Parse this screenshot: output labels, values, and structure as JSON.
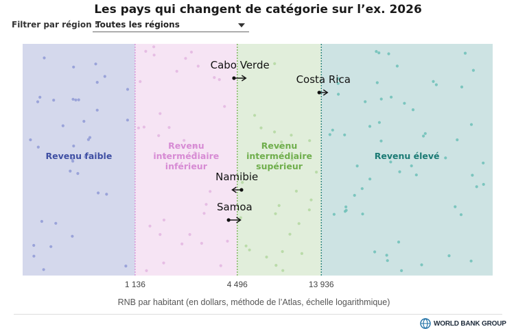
{
  "header": {
    "title": "Les pays qui changent de catégorie sur l’ex. 2026",
    "filter_label": "Filtrer par région :",
    "region_selected": "Toutes les régions"
  },
  "chart_data": {
    "type": "scatter",
    "title": "Les pays qui changent de catégorie sur l’ex. 2026",
    "xlabel": "RNB par habitant (en dollars, méthode de l’Atlas, échelle logarithmique)",
    "ylabel": "",
    "x_scale": "log",
    "xlim": [
      250,
      140000
    ],
    "grid": false,
    "thresholds": [
      1136,
      4496,
      13936
    ],
    "threshold_labels": [
      "1 136",
      "4 496",
      "13 936"
    ],
    "bands": [
      {
        "name": "Revenu faible",
        "label_lines": [
          "Revenu faible"
        ],
        "color": "#d4d8ec",
        "text_color": "#3f4fa3",
        "dot_color": "#8f9ad6"
      },
      {
        "name": "Revenu intermédiaire inférieur",
        "label_lines": [
          "Revenu",
          "intermédiaire",
          "inférieur"
        ],
        "color": "#f6e4f4",
        "text_color": "#d78bd4",
        "dot_color": "#e3b6e0"
      },
      {
        "name": "Revenu intermédiaire supérieur",
        "label_lines": [
          "Revenu",
          "intermédiaire",
          "supérieur"
        ],
        "color": "#e1eedb",
        "text_color": "#6fae4c",
        "dot_color": "#b3d7a0"
      },
      {
        "name": "Revenu élevé",
        "label_lines": [
          "Revenu élevé"
        ],
        "color": "#cde3e3",
        "text_color": "#1a7a74",
        "dot_color": "#6cbfb7"
      }
    ],
    "movers": [
      {
        "country": "Cabo Verde",
        "from": 4300,
        "to": 5050
      },
      {
        "country": "Costa Rica",
        "from": 13550,
        "to": 15150
      },
      {
        "country": "Namibie",
        "from": 4760,
        "to": 4200
      },
      {
        "country": "Samoa",
        "from": 4000,
        "to": 4700
      }
    ]
  },
  "footer": {
    "logo_text": "WORLD BANK GROUP"
  }
}
